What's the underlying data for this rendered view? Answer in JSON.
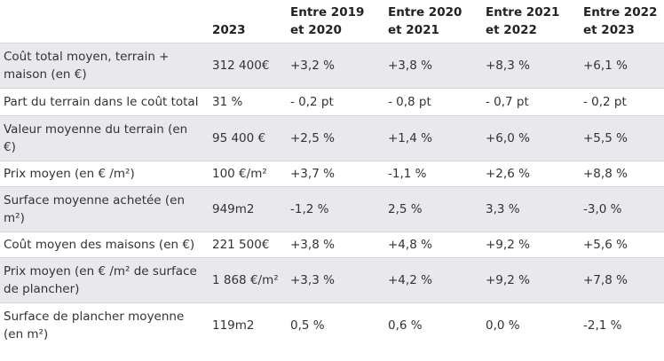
{
  "table": {
    "header": [
      "2023",
      "Entre 2019 et 2020",
      "Entre 2020 et 2021",
      "Entre 2021 et 2022",
      "Entre 2022 et 2023"
    ],
    "rows": [
      [
        "Coût total moyen, terrain + maison (en €)",
        "312 400€",
        "+3,2 %",
        "+3,8 %",
        "+8,3 %",
        "+6,1 %"
      ],
      [
        "Part du terrain dans le coût total",
        "31 %",
        "- 0,2 pt",
        "- 0,8 pt",
        "- 0,7 pt",
        "- 0,2 pt"
      ],
      [
        "Valeur moyenne du terrain (en €)",
        "95 400 €",
        "+2,5 %",
        "+1,4 %",
        "+6,0 %",
        "+5,5 %"
      ],
      [
        "Prix moyen (en € /m²)",
        "100 €/m²",
        "+3,7 %",
        "-1,1 %",
        "+2,6 %",
        "+8,8 %"
      ],
      [
        "Surface moyenne achetée (en m²)",
        "949m2",
        "-1,2 %",
        "2,5 %",
        "3,3 %",
        "-3,0 %"
      ],
      [
        "Coût moyen des maisons (en €)",
        "221 500€",
        "+3,8 %",
        "+4,8 %",
        "+9,2 %",
        "+5,6 %"
      ],
      [
        "Prix moyen (en € /m² de surface de plancher)",
        "1 868 €/m²",
        "+3,3 %",
        "+4,2 %",
        "+9,2 %",
        "+7,8 %"
      ],
      [
        "Surface de plancher moyenne (en m²)",
        "119m2",
        "0,5 %",
        "0,6 %",
        "0,0 %",
        "-2,1 %"
      ]
    ]
  }
}
